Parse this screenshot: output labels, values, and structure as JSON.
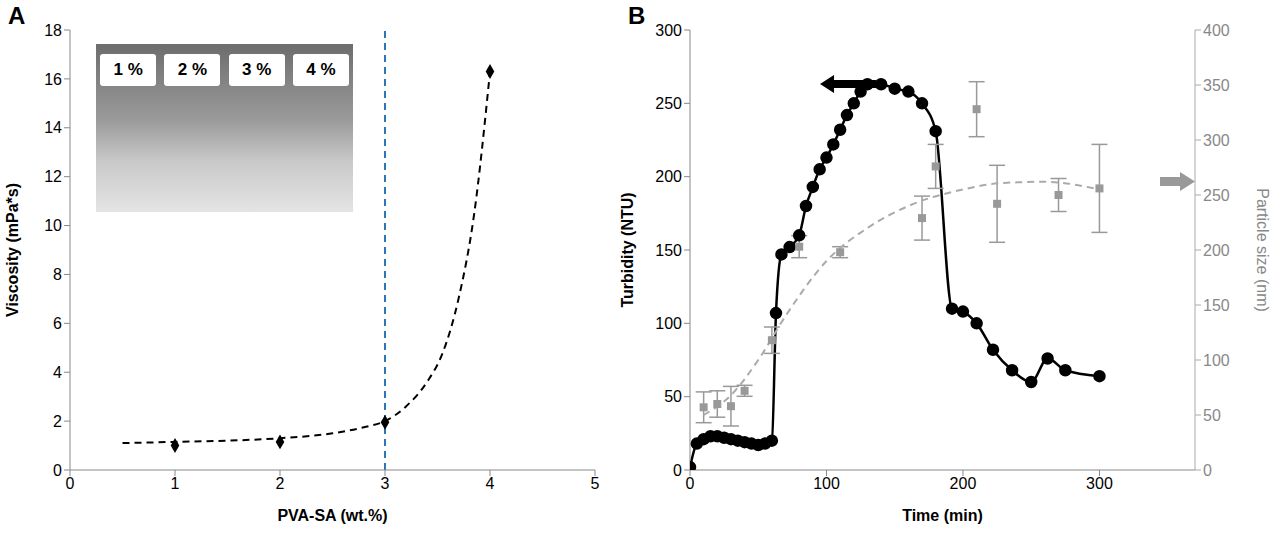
{
  "chart_data": [
    {
      "type": "scatter",
      "panel_label": "A",
      "x_label": "PVA-SA (wt.%)",
      "y_label": "Viscosity (mPa*s)",
      "xlim": [
        0,
        5
      ],
      "xticks": [
        0,
        1,
        2,
        3,
        4,
        5
      ],
      "ylim": [
        0,
        18
      ],
      "yticks": [
        0,
        2,
        4,
        6,
        8,
        10,
        12,
        14,
        16,
        18
      ],
      "grid": false,
      "annotations": [
        "1 %",
        "2 %",
        "3 %",
        "4 %"
      ],
      "series": [
        {
          "type": "scatter",
          "color": "#000000",
          "marker": "diamond",
          "x": [
            1,
            2,
            3,
            4
          ],
          "values": [
            1.0,
            1.15,
            1.95,
            16.3
          ]
        },
        {
          "type": "line",
          "color": "#000000",
          "line_style": "dashed",
          "x": [
            0.5,
            1,
            1.5,
            2,
            2.5,
            2.8,
            3,
            3.2,
            3.4,
            3.55,
            3.7,
            3.85,
            4
          ],
          "values": [
            1.1,
            1.15,
            1.2,
            1.3,
            1.5,
            1.75,
            2.0,
            2.6,
            3.6,
            4.8,
            7.0,
            10.5,
            16.3
          ]
        }
      ],
      "reference_line": {
        "x": 3,
        "color": "#2e75b6",
        "line_style": "dashed"
      }
    },
    {
      "type": "line",
      "panel_label": "B",
      "x_label": "Time (min)",
      "y_label": "Turbidity (NTU)",
      "y2_label": "Particle size (nm)",
      "xlim": [
        0,
        370
      ],
      "xticks": [
        0,
        100,
        200,
        300
      ],
      "ylim": [
        0,
        300
      ],
      "yticks": [
        0,
        50,
        100,
        150,
        200,
        250,
        300
      ],
      "y2lim": [
        0,
        400
      ],
      "y2ticks": [
        0,
        50,
        100,
        150,
        200,
        250,
        300,
        350,
        400
      ],
      "grid": false,
      "series": [
        {
          "type": "line",
          "color": "#000000",
          "marker": "circle",
          "line_style": "solid",
          "x": [
            0,
            5,
            10,
            15,
            20,
            25,
            30,
            35,
            40,
            45,
            50,
            55,
            60,
            63,
            67,
            73,
            80,
            85,
            90,
            95,
            100,
            105,
            110,
            115,
            120,
            125,
            130,
            140,
            150,
            160,
            170,
            180,
            192,
            200,
            210,
            222,
            236,
            250,
            262,
            275,
            300
          ],
          "values": [
            2,
            18,
            21,
            23,
            23,
            22,
            21,
            20,
            19,
            18,
            17,
            18,
            20,
            107,
            147,
            152,
            160,
            180,
            193,
            205,
            213,
            222,
            232,
            242,
            250,
            258,
            263,
            263,
            260,
            258,
            250,
            231,
            110,
            108,
            100,
            82,
            68,
            60,
            76,
            68,
            64
          ]
        },
        {
          "type": "scatter",
          "axis": "y2",
          "color": "#999999",
          "marker": "square",
          "x": [
            10,
            20,
            30,
            40,
            60,
            80,
            110,
            170,
            180,
            210,
            225,
            270,
            300
          ],
          "values": [
            57,
            60,
            58,
            72,
            118,
            203,
            198,
            229,
            276,
            328,
            242,
            250,
            256
          ],
          "error": [
            14,
            12,
            18,
            5,
            12,
            10,
            5,
            20,
            20,
            25,
            35,
            15,
            40
          ]
        },
        {
          "type": "line",
          "axis": "y2",
          "color": "#aaaaaa",
          "line_style": "dashed",
          "x": [
            10,
            30,
            50,
            70,
            100,
            130,
            160,
            200,
            230,
            260,
            300
          ],
          "values": [
            50,
            68,
            100,
            140,
            190,
            220,
            240,
            255,
            261,
            262,
            255
          ]
        }
      ]
    }
  ]
}
